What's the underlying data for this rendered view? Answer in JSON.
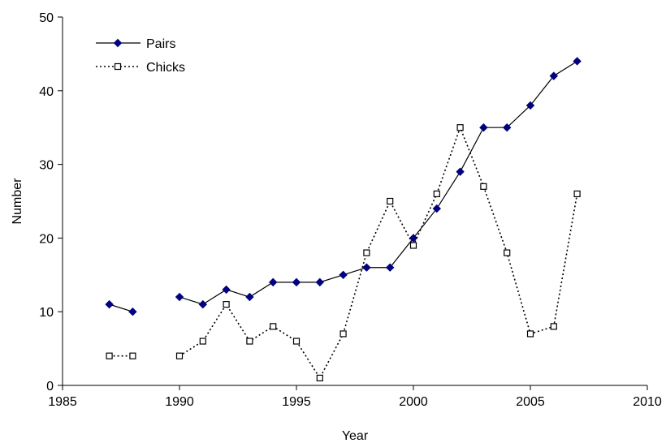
{
  "chart_data": {
    "type": "line",
    "title": "",
    "xlabel": "Year",
    "ylabel": "Number",
    "xlim": [
      1985,
      2010
    ],
    "ylim": [
      0,
      50
    ],
    "xticks": [
      1985,
      1990,
      1995,
      2000,
      2005,
      2010
    ],
    "yticks": [
      0,
      10,
      20,
      30,
      40,
      50
    ],
    "grid": false,
    "legend_position": "top-left",
    "series": [
      {
        "name": "Pairs",
        "line_style": "solid",
        "marker": "filled-diamond",
        "color": "#000080",
        "points": [
          [
            1987,
            11
          ],
          [
            1988,
            10
          ],
          [
            1990,
            12
          ],
          [
            1991,
            11
          ],
          [
            1992,
            13
          ],
          [
            1993,
            12
          ],
          [
            1994,
            14
          ],
          [
            1995,
            14
          ],
          [
            1996,
            14
          ],
          [
            1997,
            15
          ],
          [
            1998,
            16
          ],
          [
            1999,
            16
          ],
          [
            2000,
            20
          ],
          [
            2001,
            24
          ],
          [
            2002,
            29
          ],
          [
            2003,
            35
          ],
          [
            2004,
            35
          ],
          [
            2005,
            38
          ],
          [
            2006,
            42
          ],
          [
            2007,
            44
          ]
        ]
      },
      {
        "name": "Chicks",
        "line_style": "dotted",
        "marker": "hollow-square",
        "color": "#000000",
        "points": [
          [
            1987,
            4
          ],
          [
            1988,
            4
          ],
          [
            1990,
            4
          ],
          [
            1991,
            6
          ],
          [
            1992,
            11
          ],
          [
            1993,
            6
          ],
          [
            1994,
            8
          ],
          [
            1995,
            6
          ],
          [
            1996,
            1
          ],
          [
            1997,
            7
          ],
          [
            1998,
            18
          ],
          [
            1999,
            25
          ],
          [
            2000,
            19
          ],
          [
            2001,
            26
          ],
          [
            2002,
            35
          ],
          [
            2003,
            27
          ],
          [
            2004,
            18
          ],
          [
            2005,
            7
          ],
          [
            2006,
            8
          ],
          [
            2007,
            26
          ]
        ]
      }
    ]
  }
}
